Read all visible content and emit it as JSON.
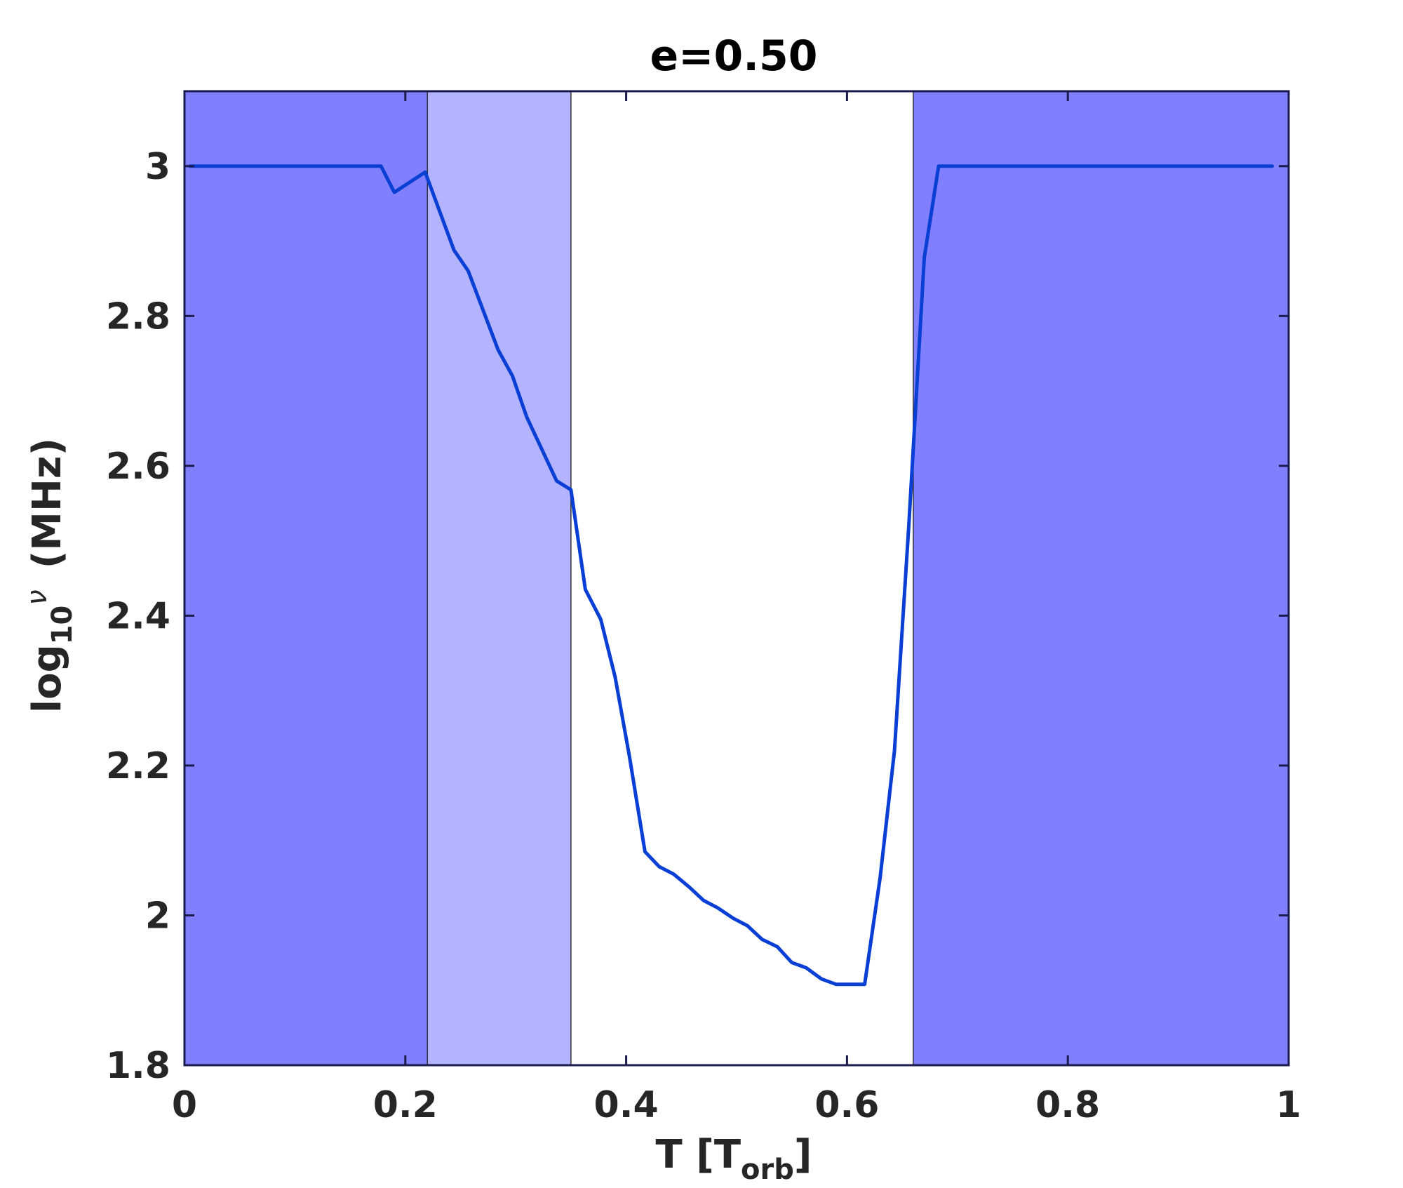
{
  "chart_data": {
    "type": "line",
    "title": "e=0.50",
    "xlabel": {
      "main": "T [T",
      "sub": "orb",
      "end": "]"
    },
    "ylabel": {
      "main": "log",
      "sub": "10",
      "sup": "ν",
      "end": "(MHz)"
    },
    "xlim": [
      0,
      1
    ],
    "ylim": [
      1.8,
      3.1
    ],
    "x_ticks": [
      0,
      0.2,
      0.4,
      0.6,
      0.8,
      1
    ],
    "x_tick_labels": [
      "0",
      "0.2",
      "0.4",
      "0.6",
      "0.8",
      "1"
    ],
    "y_ticks": [
      1.8,
      2.0,
      2.2,
      2.4,
      2.6,
      2.8,
      3.0
    ],
    "y_tick_labels": [
      "1.8",
      "2",
      "2.2",
      "2.4",
      "2.6",
      "2.8",
      "3"
    ],
    "grid": false,
    "regions": [
      {
        "x": [
          0,
          0.22
        ],
        "color": "#8080ff"
      },
      {
        "x": [
          0.22,
          0.35
        ],
        "color": "#b3b3ff"
      },
      {
        "x": [
          0.66,
          1.0
        ],
        "color": "#8080ff"
      }
    ],
    "region_boundaries": [
      0.22,
      0.35,
      0.66
    ],
    "series": [
      {
        "color": "#0a3fd6",
        "x": [
          0.005,
          0.178,
          0.19,
          0.218,
          0.244,
          0.257,
          0.284,
          0.297,
          0.31,
          0.337,
          0.35,
          0.363,
          0.377,
          0.39,
          0.403,
          0.417,
          0.43,
          0.443,
          0.457,
          0.47,
          0.483,
          0.497,
          0.51,
          0.523,
          0.537,
          0.55,
          0.563,
          0.577,
          0.59,
          0.603,
          0.616,
          0.63,
          0.643,
          0.656,
          0.67,
          0.683,
          0.985
        ],
        "y": [
          3.0,
          3.0,
          2.965,
          2.992,
          2.888,
          2.86,
          2.755,
          2.72,
          2.665,
          2.58,
          2.568,
          2.435,
          2.395,
          2.318,
          2.212,
          2.085,
          2.065,
          2.055,
          2.038,
          2.02,
          2.01,
          1.996,
          1.986,
          1.968,
          1.958,
          1.937,
          1.93,
          1.915,
          1.908,
          1.908,
          1.908,
          2.05,
          2.22,
          2.52,
          2.878,
          3.0,
          3.0
        ]
      }
    ]
  }
}
